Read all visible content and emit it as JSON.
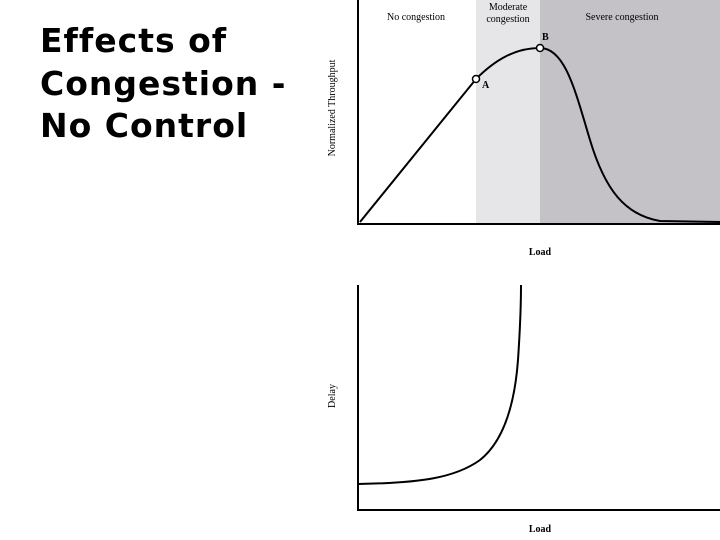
{
  "title": {
    "lines": [
      "Effects of",
      "Congestion -",
      "No Control"
    ]
  },
  "throughput_diagram": {
    "regions": {
      "none": "No congestion",
      "moderate": [
        "Moderate",
        "congestion"
      ],
      "severe": "Severe  congestion"
    },
    "points": {
      "a": "A",
      "b": "B"
    },
    "y_label": "Normalized Throughput",
    "x_label": "Load"
  },
  "delay_diagram": {
    "y_label": "Delay",
    "x_label": "Load"
  }
}
